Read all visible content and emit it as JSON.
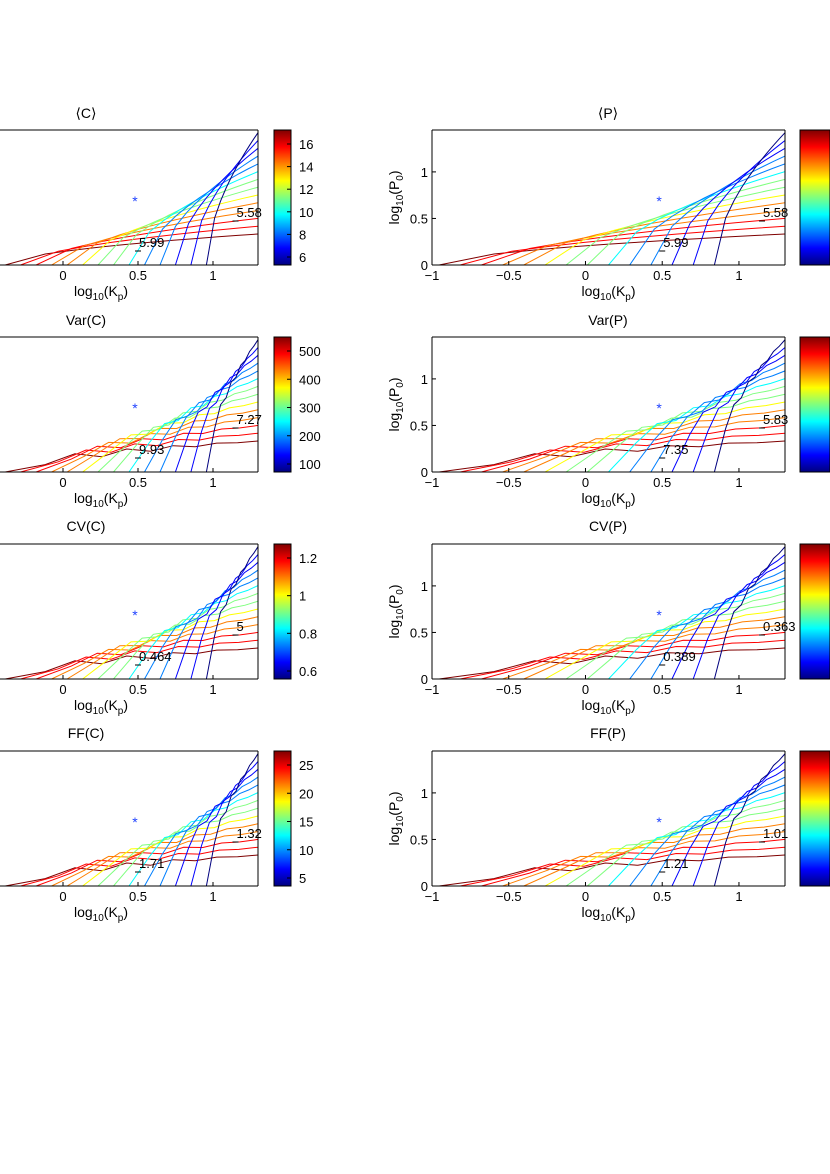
{
  "colors": {
    "jet": [
      "#00007f",
      "#0000ff",
      "#007fff",
      "#00ffff",
      "#7fff7f",
      "#ffff00",
      "#ff7f00",
      "#ff0000",
      "#7f0000"
    ],
    "marker": "#2244ff",
    "axis": "#000000"
  },
  "chart_data": [
    {
      "id": "meanC",
      "type": "contour",
      "title": "⟨C⟩",
      "xlabel": "log10(Kp)",
      "ylabel": "",
      "xticks": [
        "0",
        "0.5",
        "1"
      ],
      "yticks": [],
      "colorbar_ticks": [
        "16",
        "14",
        "12",
        "10",
        "8",
        "6"
      ],
      "contour_labels": [
        "5.99",
        "5.58"
      ]
    },
    {
      "id": "meanP",
      "type": "contour",
      "title": "⟨P⟩",
      "xlabel": "log10(Kp)",
      "ylabel": "log10(P0)",
      "xticks": [
        "−1",
        "−0.5",
        "0",
        "0.5",
        "1"
      ],
      "yticks": [
        "0",
        "0.5",
        "1"
      ],
      "colorbar_ticks": [],
      "contour_labels": [
        "5.99",
        "5.58"
      ]
    },
    {
      "id": "varC",
      "type": "contour",
      "title": "Var(C)",
      "xlabel": "log10(Kp)",
      "ylabel": "",
      "xticks": [
        "0",
        "0.5",
        "1"
      ],
      "yticks": [],
      "colorbar_ticks": [
        "500",
        "400",
        "300",
        "200",
        "100"
      ],
      "contour_labels": [
        "9.93",
        "7.27"
      ]
    },
    {
      "id": "varP",
      "type": "contour",
      "title": "Var(P)",
      "xlabel": "log10(Kp)",
      "ylabel": "log10(P0)",
      "xticks": [
        "−1",
        "−0.5",
        "0",
        "0.5",
        "1"
      ],
      "yticks": [
        "0",
        "0.5",
        "1"
      ],
      "colorbar_ticks": [],
      "contour_labels": [
        "7.35",
        "5.83"
      ]
    },
    {
      "id": "cvC",
      "type": "contour",
      "title": "CV(C)",
      "xlabel": "log10(Kp)",
      "ylabel": "",
      "xticks": [
        "0",
        "0.5",
        "1"
      ],
      "yticks": [],
      "colorbar_ticks": [
        "1.2",
        "1",
        "0.8",
        "0.6"
      ],
      "contour_labels": [
        "0.464",
        "5"
      ]
    },
    {
      "id": "cvP",
      "type": "contour",
      "title": "CV(P)",
      "xlabel": "log10(Kp)",
      "ylabel": "log10(P0)",
      "xticks": [
        "−1",
        "−0.5",
        "0",
        "0.5",
        "1"
      ],
      "yticks": [
        "0",
        "0.5",
        "1"
      ],
      "colorbar_ticks": [],
      "contour_labels": [
        "0.389",
        "0.363"
      ]
    },
    {
      "id": "ffC",
      "type": "contour",
      "title": "FF(C)",
      "xlabel": "log10(Kp)",
      "ylabel": "",
      "xticks": [
        "0",
        "0.5",
        "1"
      ],
      "yticks": [],
      "colorbar_ticks": [
        "25",
        "20",
        "15",
        "10",
        "5"
      ],
      "contour_labels": [
        "1.71",
        "1.32"
      ]
    },
    {
      "id": "ffP",
      "type": "contour",
      "title": "FF(P)",
      "xlabel": "log10(Kp)",
      "ylabel": "log10(P0)",
      "xticks": [
        "−1",
        "−0.5",
        "0",
        "0.5",
        "1"
      ],
      "yticks": [
        "0",
        "0.5",
        "1"
      ],
      "colorbar_ticks": [],
      "contour_labels": [
        "1.21",
        "1.01"
      ]
    }
  ]
}
